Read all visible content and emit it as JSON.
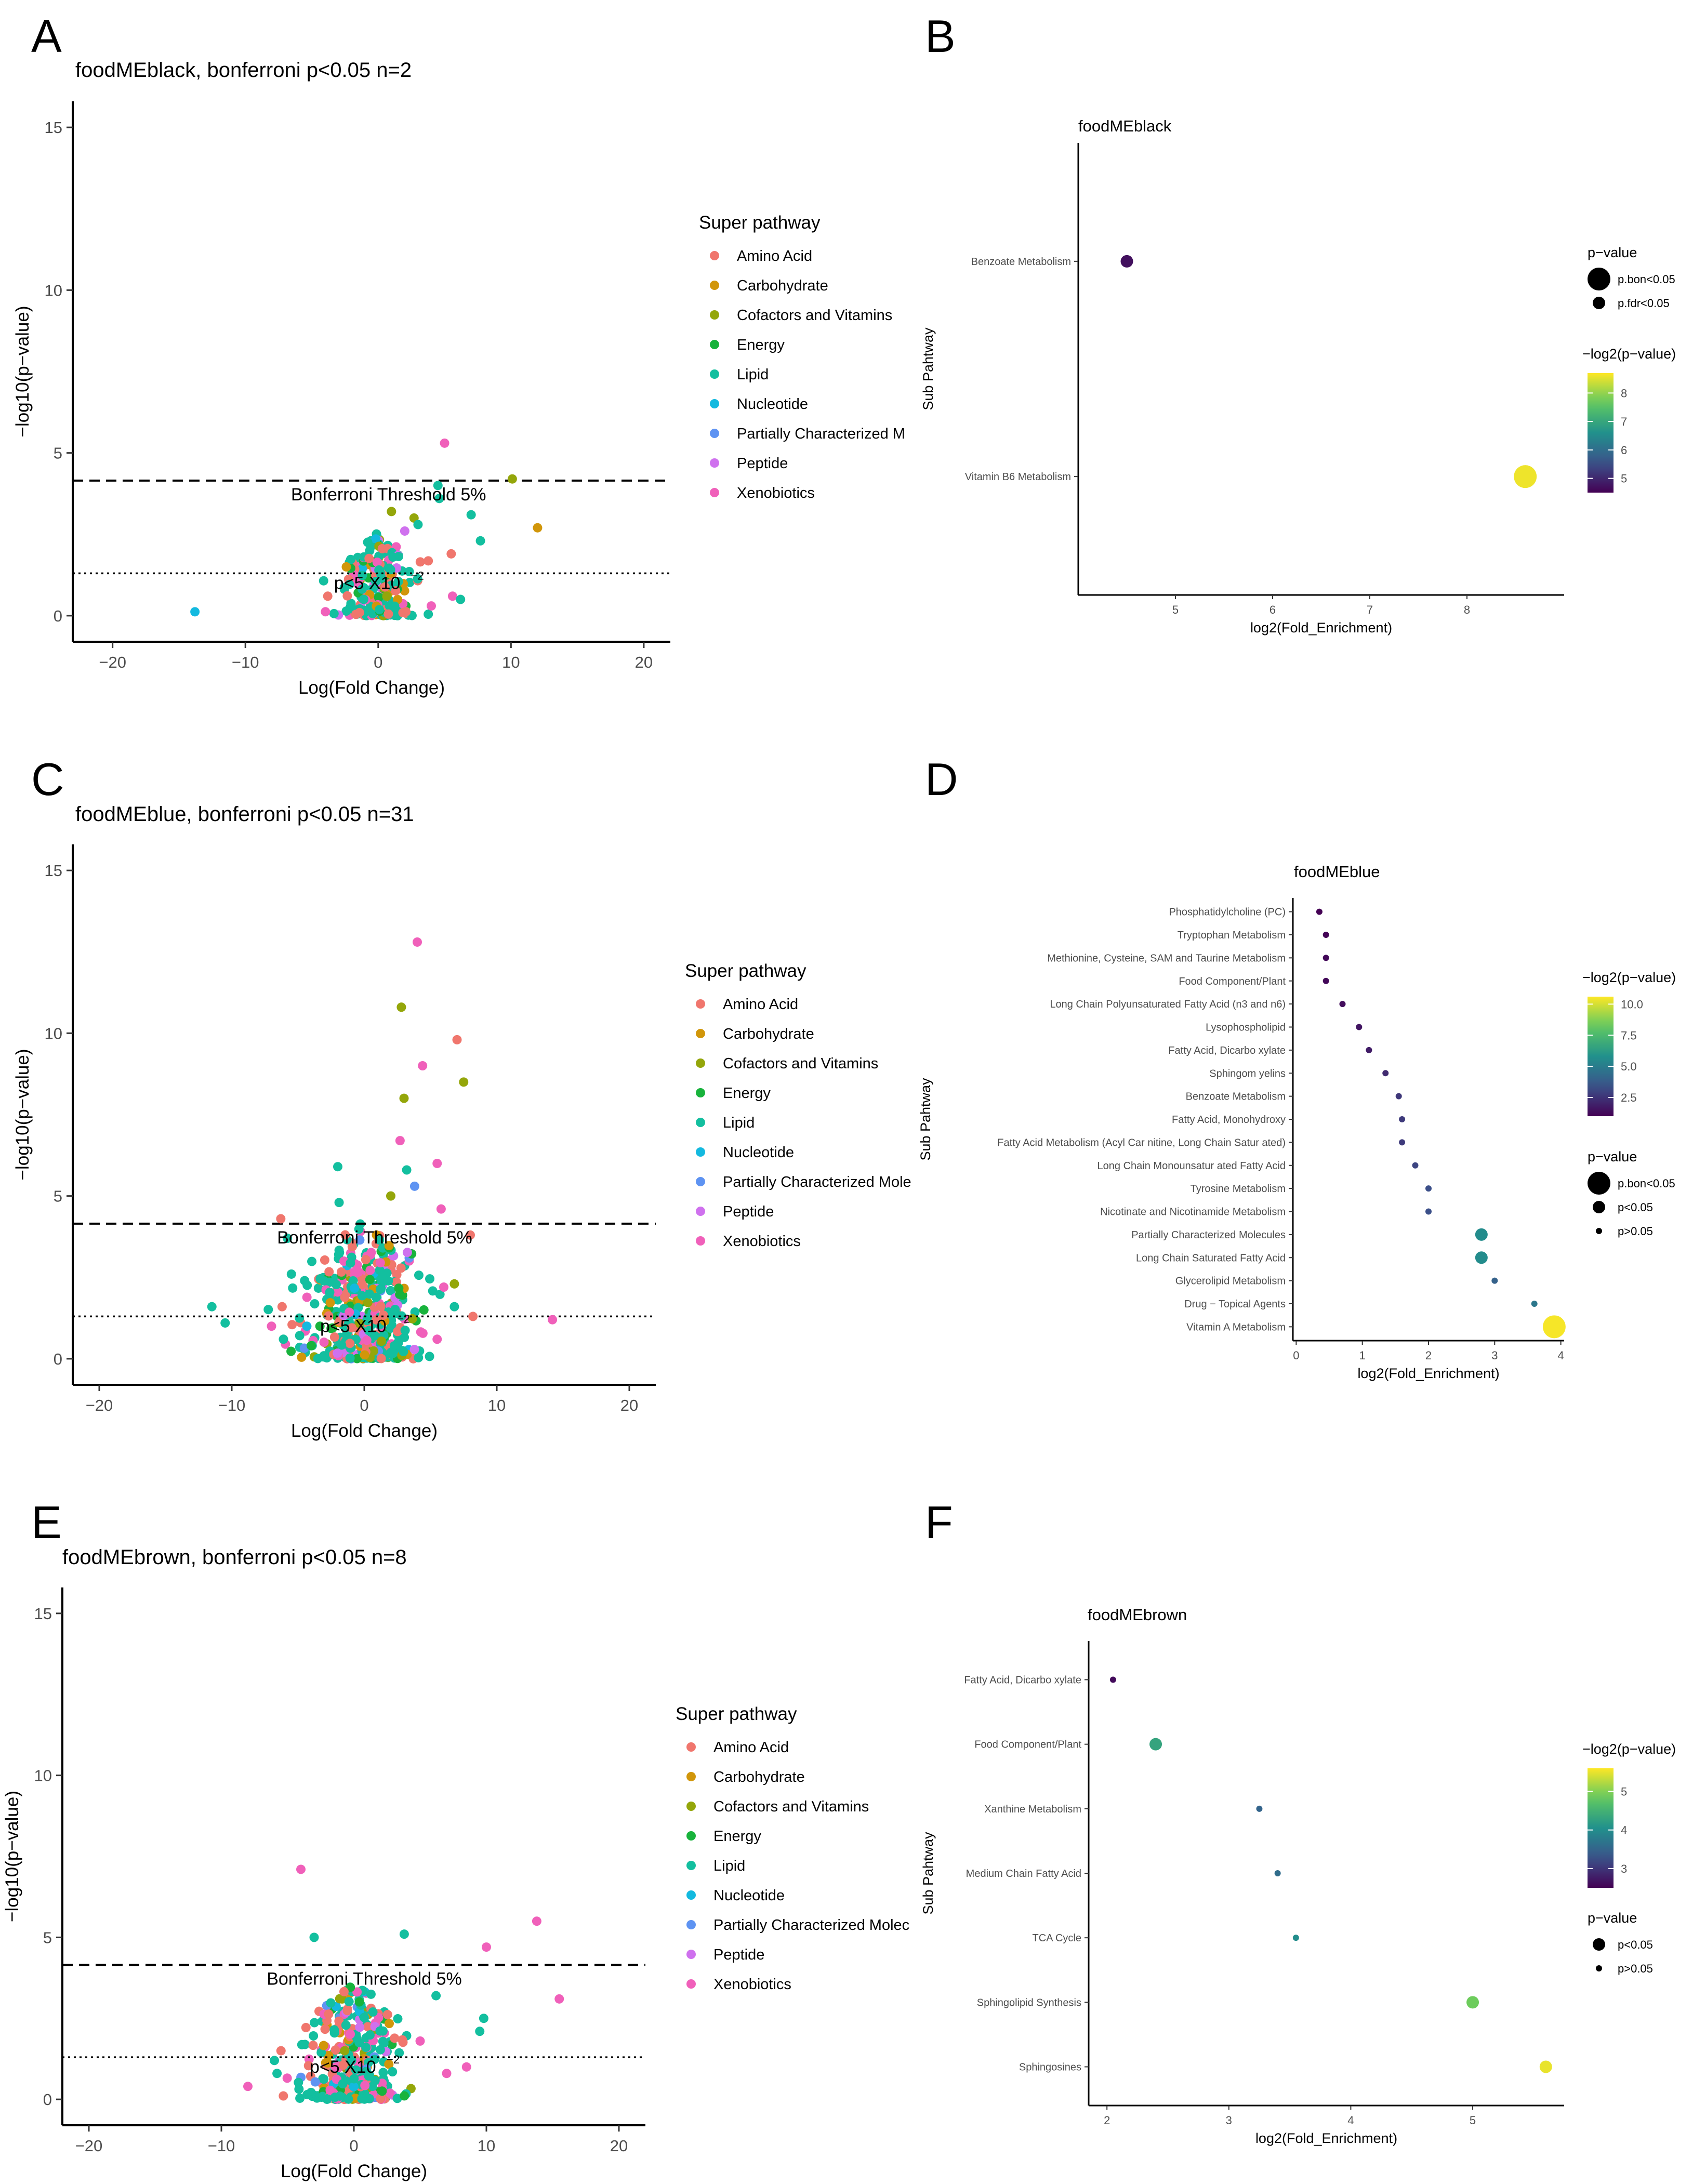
{
  "figure": {
    "panel_letters": [
      "A",
      "B",
      "C",
      "D",
      "E",
      "F"
    ]
  },
  "palette": {
    "Amino Acid": "#f0766d",
    "Carbohydrate": "#d1960a",
    "Cofactors and Vitamins": "#94a60a",
    "Energy": "#18b33c",
    "Lipid": "#13bf9f",
    "Nucleotide": "#13b9df",
    "Partially Characterized Molecules": "#5e93f2",
    "Peptide": "#cf71ee",
    "Xenobiotics": "#f060ba"
  },
  "chart_data": [
    {
      "id": "A",
      "type": "scatter",
      "title": "foodMEblack, bonferroni p<0.05 n=2",
      "xlabel": "Log(Fold Change)",
      "ylabel": "−log10(p−value)",
      "xlim": [
        -23,
        22
      ],
      "ylim": [
        -0.8,
        15.8
      ],
      "xticks": [
        -20,
        -10,
        0,
        10,
        20
      ],
      "xtick_labels": [
        "−20",
        "−10",
        "0",
        "10",
        "20"
      ],
      "yticks": [
        0,
        5,
        10,
        15
      ],
      "ytick_labels": [
        "0",
        "5",
        "10",
        "15"
      ],
      "hline_bonferroni": 4.15,
      "hline_p": 1.3,
      "bonf_label": "Bonferroni Threshold 5%",
      "p_label": "p<5 X10",
      "legend_title": "Super pathway",
      "legend_items": [
        "Amino Acid",
        "Carbohydrate",
        "Cofactors and Vitamins",
        "Energy",
        "Lipid",
        "Nucleotide",
        "Partially Characterized M",
        "Peptide",
        "Xenobiotics"
      ],
      "cloud": {
        "seed": 11,
        "n": 230,
        "x_sd": 1.3,
        "y_max": 2.6,
        "dist": [
          0.18,
          0.06,
          0.05,
          0.06,
          0.42,
          0.03,
          0.02,
          0.05,
          0.13
        ]
      },
      "points": [
        {
          "x": -13.8,
          "y": 0.12,
          "c": "Nucleotide"
        },
        {
          "x": 5.0,
          "y": 5.3,
          "c": "Xenobiotics"
        },
        {
          "x": 10.1,
          "y": 4.2,
          "c": "Cofactors and Vitamins"
        },
        {
          "x": 12.0,
          "y": 2.7,
          "c": "Carbohydrate"
        },
        {
          "x": 4.5,
          "y": 4.0,
          "c": "Lipid"
        },
        {
          "x": 7.0,
          "y": 3.1,
          "c": "Lipid"
        },
        {
          "x": 4.6,
          "y": 3.6,
          "c": "Lipid"
        },
        {
          "x": 7.7,
          "y": 2.3,
          "c": "Lipid"
        },
        {
          "x": 5.5,
          "y": 1.9,
          "c": "Amino Acid"
        },
        {
          "x": 2.7,
          "y": 3.0,
          "c": "Cofactors and Vitamins"
        },
        {
          "x": 1.0,
          "y": 3.2,
          "c": "Cofactors and Vitamins"
        },
        {
          "x": 3.0,
          "y": 2.8,
          "c": "Lipid"
        },
        {
          "x": -2.4,
          "y": 1.5,
          "c": "Carbohydrate"
        },
        {
          "x": 5.6,
          "y": 0.6,
          "c": "Xenobiotics"
        },
        {
          "x": 4.0,
          "y": 0.3,
          "c": "Xenobiotics"
        },
        {
          "x": 6.2,
          "y": 0.5,
          "c": "Lipid"
        },
        {
          "x": -3.8,
          "y": 0.6,
          "c": "Amino Acid"
        },
        {
          "x": 2.0,
          "y": 2.6,
          "c": "Peptide"
        }
      ]
    },
    {
      "id": "C",
      "type": "scatter",
      "title": "foodMEblue, bonferroni p<0.05 n=31",
      "xlabel": "Log(Fold Change)",
      "ylabel": "−log10(p−value)",
      "xlim": [
        -22,
        22
      ],
      "ylim": [
        -0.8,
        15.8
      ],
      "xticks": [
        -20,
        -10,
        0,
        10,
        20
      ],
      "xtick_labels": [
        "−20",
        "−10",
        "0",
        "10",
        "20"
      ],
      "yticks": [
        0,
        5,
        10,
        15
      ],
      "ytick_labels": [
        "0",
        "5",
        "10",
        "15"
      ],
      "hline_bonferroni": 4.15,
      "hline_p": 1.3,
      "bonf_label": "Bonferroni Threshold 5%",
      "p_label": "p<5 X10",
      "legend_title": "Super pathway",
      "legend_items": [
        "Amino Acid",
        "Carbohydrate",
        "Cofactors and Vitamins",
        "Energy",
        "Lipid",
        "Nucleotide",
        "Partially Characterized Mole",
        "Peptide",
        "Xenobiotics"
      ],
      "cloud": {
        "seed": 23,
        "n": 420,
        "x_sd": 1.9,
        "y_max": 4.3,
        "dist": [
          0.17,
          0.06,
          0.05,
          0.05,
          0.48,
          0.03,
          0.02,
          0.04,
          0.1
        ]
      },
      "points": [
        {
          "x": 4.0,
          "y": 12.8,
          "c": "Xenobiotics"
        },
        {
          "x": 2.8,
          "y": 10.8,
          "c": "Cofactors and Vitamins"
        },
        {
          "x": 7.0,
          "y": 9.8,
          "c": "Amino Acid"
        },
        {
          "x": 7.5,
          "y": 8.5,
          "c": "Cofactors and Vitamins"
        },
        {
          "x": 4.4,
          "y": 9.0,
          "c": "Xenobiotics"
        },
        {
          "x": 3.0,
          "y": 8.0,
          "c": "Cofactors and Vitamins"
        },
        {
          "x": 2.7,
          "y": 6.7,
          "c": "Xenobiotics"
        },
        {
          "x": 5.5,
          "y": 6.0,
          "c": "Xenobiotics"
        },
        {
          "x": 3.2,
          "y": 5.8,
          "c": "Lipid"
        },
        {
          "x": 3.8,
          "y": 5.3,
          "c": "Partially Characterized Molecules"
        },
        {
          "x": 2.0,
          "y": 5.0,
          "c": "Cofactors and Vitamins"
        },
        {
          "x": 5.8,
          "y": 4.6,
          "c": "Xenobiotics"
        },
        {
          "x": -2.0,
          "y": 5.9,
          "c": "Lipid"
        },
        {
          "x": -1.9,
          "y": 4.8,
          "c": "Lipid"
        },
        {
          "x": -6.3,
          "y": 4.3,
          "c": "Amino Acid"
        },
        {
          "x": 8.0,
          "y": 3.8,
          "c": "Amino Acid"
        },
        {
          "x": 6.8,
          "y": 2.3,
          "c": "Cofactors and Vitamins"
        },
        {
          "x": 6.0,
          "y": 2.2,
          "c": "Xenobiotics"
        },
        {
          "x": -11.5,
          "y": 1.6,
          "c": "Lipid"
        },
        {
          "x": -10.5,
          "y": 1.1,
          "c": "Lipid"
        },
        {
          "x": -6.2,
          "y": 1.6,
          "c": "Amino Acid"
        },
        {
          "x": -6.1,
          "y": 0.6,
          "c": "Lipid"
        },
        {
          "x": -7.0,
          "y": 1.0,
          "c": "Xenobiotics"
        },
        {
          "x": -5.5,
          "y": 2.6,
          "c": "Lipid"
        },
        {
          "x": -4.5,
          "y": 2.4,
          "c": "Lipid"
        },
        {
          "x": -5.8,
          "y": 3.7,
          "c": "Lipid"
        },
        {
          "x": 8.2,
          "y": 1.3,
          "c": "Amino Acid"
        },
        {
          "x": 14.2,
          "y": 1.2,
          "c": "Xenobiotics"
        },
        {
          "x": 5.5,
          "y": 0.6,
          "c": "Xenobiotics"
        },
        {
          "x": 6.8,
          "y": 1.6,
          "c": "Lipid"
        },
        {
          "x": -4.0,
          "y": 0.4,
          "c": "Energy"
        },
        {
          "x": 4.5,
          "y": 1.5,
          "c": "Energy"
        }
      ]
    },
    {
      "id": "E",
      "type": "scatter",
      "title": "foodMEbrown, bonferroni p<0.05 n=8",
      "xlabel": "Log(Fold Change)",
      "ylabel": "−log10(p−value)",
      "xlim": [
        -22,
        22
      ],
      "ylim": [
        -0.8,
        15.8
      ],
      "xticks": [
        -20,
        -10,
        0,
        10,
        20
      ],
      "xtick_labels": [
        "−20",
        "−10",
        "0",
        "10",
        "20"
      ],
      "yticks": [
        0,
        5,
        10,
        15
      ],
      "ytick_labels": [
        "0",
        "5",
        "10",
        "15"
      ],
      "hline_bonferroni": 4.15,
      "hline_p": 1.3,
      "bonf_label": "Bonferroni Threshold 5%",
      "p_label": "p<5 X10",
      "legend_title": "Super pathway",
      "legend_items": [
        "Amino Acid",
        "Carbohydrate",
        "Cofactors and Vitamins",
        "Energy",
        "Lipid",
        "Nucleotide",
        "Partially Characterized Molec",
        "Peptide",
        "Xenobiotics"
      ],
      "cloud": {
        "seed": 37,
        "n": 360,
        "x_sd": 1.8,
        "y_max": 3.6,
        "dist": [
          0.16,
          0.07,
          0.05,
          0.05,
          0.42,
          0.03,
          0.02,
          0.04,
          0.16
        ]
      },
      "points": [
        {
          "x": -4.0,
          "y": 7.1,
          "c": "Xenobiotics"
        },
        {
          "x": 13.8,
          "y": 5.5,
          "c": "Xenobiotics"
        },
        {
          "x": 3.8,
          "y": 5.1,
          "c": "Lipid"
        },
        {
          "x": -3.0,
          "y": 5.0,
          "c": "Lipid"
        },
        {
          "x": 10.0,
          "y": 4.7,
          "c": "Xenobiotics"
        },
        {
          "x": 15.5,
          "y": 3.1,
          "c": "Xenobiotics"
        },
        {
          "x": 9.8,
          "y": 2.5,
          "c": "Lipid"
        },
        {
          "x": 9.5,
          "y": 2.1,
          "c": "Lipid"
        },
        {
          "x": 8.5,
          "y": 1.0,
          "c": "Xenobiotics"
        },
        {
          "x": 7.0,
          "y": 0.8,
          "c": "Xenobiotics"
        },
        {
          "x": -8.0,
          "y": 0.4,
          "c": "Xenobiotics"
        },
        {
          "x": -6.0,
          "y": 1.2,
          "c": "Lipid"
        },
        {
          "x": -5.5,
          "y": 1.5,
          "c": "Amino Acid"
        },
        {
          "x": -5.8,
          "y": 0.8,
          "c": "Lipid"
        },
        {
          "x": 5.0,
          "y": 1.8,
          "c": "Xenobiotics"
        },
        {
          "x": 6.2,
          "y": 3.2,
          "c": "Lipid"
        }
      ]
    },
    {
      "id": "B",
      "type": "scatter",
      "subtype": "enrichment-dotplot",
      "title": "foodMEblack",
      "xlabel": "log2(Fold_Enrichment)",
      "ylabel": "Sub Pahtway",
      "xlim": [
        4.0,
        9.0
      ],
      "xticks": [
        5,
        6,
        7,
        8
      ],
      "xtick_labels": [
        "5",
        "6",
        "7",
        "8"
      ],
      "categories": [
        "Benzoate Metabolism",
        "Vitamin B6 Metabolism"
      ],
      "points": [
        {
          "category": "Benzoate Metabolism",
          "x": 4.5,
          "neglog2p": 4.7,
          "sig": "p.fdr<0.05"
        },
        {
          "category": "Vitamin B6 Metabolism",
          "x": 8.6,
          "neglog2p": 8.6,
          "sig": "p.bon<0.05"
        }
      ],
      "size_legend_title": "p−value",
      "size_legend": [
        {
          "label": "p.bon<0.05",
          "size": "large"
        },
        {
          "label": "p.fdr<0.05",
          "size": "medium"
        }
      ],
      "color_legend_title": "−log2(p−value)",
      "color_range": [
        4.5,
        8.7
      ],
      "color_ticks": [
        5,
        6,
        7,
        8
      ],
      "color_tick_labels": [
        "5",
        "6",
        "7",
        "8"
      ]
    },
    {
      "id": "D",
      "type": "scatter",
      "subtype": "enrichment-dotplot",
      "title": "foodMEblue",
      "xlabel": "log2(Fold_Enrichment)",
      "ylabel": "Sub Pahtway",
      "xlim": [
        -0.05,
        4.05
      ],
      "xticks": [
        0,
        1,
        2,
        3,
        4
      ],
      "xtick_labels": [
        "0",
        "1",
        "2",
        "3",
        "4"
      ],
      "categories": [
        "Phosphatidylcholine (PC)",
        "Tryptophan Metabolism",
        "Methionine, Cysteine, SAM and Taurine Metabolism",
        "Food Component/Plant",
        "Long Chain Polyunsaturated Fatty Acid (n3 and n6)",
        "Lysophospholipid",
        "Fatty Acid, Dicarbo xylate",
        "Sphingom yelins",
        "Benzoate Metabolism",
        "Fatty Acid, Monohydroxy",
        "Fatty Acid Metabolism (Acyl Car nitine, Long Chain Satur ated)",
        "Long Chain Monounsatur ated Fatty Acid",
        "Tyrosine Metabolism",
        "Nicotinate and Nicotinamide Metabolism",
        "Partially Characterized Molecules",
        "Long Chain Saturated Fatty Acid",
        "Glycerolipid Metabolism",
        "Drug − Topical Agents",
        "Vitamin A Metabolism"
      ],
      "points": [
        {
          "category": "Phosphatidylcholine (PC)",
          "x": 0.35,
          "neglog2p": 1.0,
          "sig": "p>0.05"
        },
        {
          "category": "Tryptophan Metabolism",
          "x": 0.45,
          "neglog2p": 1.1,
          "sig": "p>0.05"
        },
        {
          "category": "Methionine, Cysteine, SAM and Taurine Metabolism",
          "x": 0.45,
          "neglog2p": 1.2,
          "sig": "p>0.05"
        },
        {
          "category": "Food Component/Plant",
          "x": 0.45,
          "neglog2p": 1.2,
          "sig": "p>0.05"
        },
        {
          "category": "Long Chain Polyunsaturated Fatty Acid (n3 and n6)",
          "x": 0.7,
          "neglog2p": 1.4,
          "sig": "p>0.05"
        },
        {
          "category": "Lysophospholipid",
          "x": 0.95,
          "neglog2p": 1.6,
          "sig": "p>0.05"
        },
        {
          "category": "Fatty Acid, Dicarbo xylate",
          "x": 1.1,
          "neglog2p": 1.8,
          "sig": "p>0.05"
        },
        {
          "category": "Sphingom yelins",
          "x": 1.35,
          "neglog2p": 2.2,
          "sig": "p>0.05"
        },
        {
          "category": "Benzoate Metabolism",
          "x": 1.55,
          "neglog2p": 2.6,
          "sig": "p>0.05"
        },
        {
          "category": "Fatty Acid, Monohydroxy",
          "x": 1.6,
          "neglog2p": 2.7,
          "sig": "p>0.05"
        },
        {
          "category": "Fatty Acid Metabolism (Acyl Car nitine, Long Chain Satur ated)",
          "x": 1.6,
          "neglog2p": 2.7,
          "sig": "p>0.05"
        },
        {
          "category": "Long Chain Monounsatur ated Fatty Acid",
          "x": 1.8,
          "neglog2p": 3.0,
          "sig": "p>0.05"
        },
        {
          "category": "Tyrosine Metabolism",
          "x": 2.0,
          "neglog2p": 3.3,
          "sig": "p>0.05"
        },
        {
          "category": "Nicotinate and Nicotinamide Metabolism",
          "x": 2.0,
          "neglog2p": 3.3,
          "sig": "p>0.05"
        },
        {
          "category": "Partially Characterized Molecules",
          "x": 2.8,
          "neglog2p": 5.6,
          "sig": "p<0.05"
        },
        {
          "category": "Long Chain Saturated Fatty Acid",
          "x": 2.8,
          "neglog2p": 5.6,
          "sig": "p<0.05"
        },
        {
          "category": "Glycerolipid Metabolism",
          "x": 3.0,
          "neglog2p": 4.0,
          "sig": "p>0.05"
        },
        {
          "category": "Drug − Topical Agents",
          "x": 3.6,
          "neglog2p": 4.8,
          "sig": "p>0.05"
        },
        {
          "category": "Vitamin A Metabolism",
          "x": 3.9,
          "neglog2p": 10.5,
          "sig": "p.bon<0.05"
        }
      ],
      "size_legend_title": "p−value",
      "size_legend": [
        {
          "label": "p.bon<0.05",
          "size": "large"
        },
        {
          "label": "p<0.05",
          "size": "medium"
        },
        {
          "label": "p>0.05",
          "size": "small"
        }
      ],
      "color_legend_title": "−log2(p−value)",
      "color_range": [
        1.0,
        10.6
      ],
      "color_ticks": [
        2.5,
        5.0,
        7.5,
        10.0
      ],
      "color_tick_labels": [
        "2.5",
        "5.0",
        "7.5",
        "10.0"
      ]
    },
    {
      "id": "F",
      "type": "scatter",
      "subtype": "enrichment-dotplot",
      "title": "foodMEbrown",
      "xlabel": "log2(Fold_Enrichment)",
      "ylabel": "Sub Pahtway",
      "xlim": [
        1.85,
        5.75
      ],
      "xticks": [
        2,
        3,
        4,
        5
      ],
      "xtick_labels": [
        "2",
        "3",
        "4",
        "5"
      ],
      "categories": [
        "Fatty Acid, Dicarbo xylate",
        "Food Component/Plant",
        "Xanthine Metabolism",
        "Medium Chain Fatty Acid",
        "TCA Cycle",
        "Sphingolipid Synthesis",
        "Sphingosines"
      ],
      "points": [
        {
          "category": "Fatty Acid, Dicarbo xylate",
          "x": 2.05,
          "neglog2p": 2.6,
          "sig": "p>0.05"
        },
        {
          "category": "Food Component/Plant",
          "x": 2.4,
          "neglog2p": 4.3,
          "sig": "p<0.05"
        },
        {
          "category": "Xanthine Metabolism",
          "x": 3.25,
          "neglog2p": 3.5,
          "sig": "p>0.05"
        },
        {
          "category": "Medium Chain Fatty Acid",
          "x": 3.4,
          "neglog2p": 3.6,
          "sig": "p>0.05"
        },
        {
          "category": "TCA Cycle",
          "x": 3.55,
          "neglog2p": 4.0,
          "sig": "p>0.05"
        },
        {
          "category": "Sphingolipid Synthesis",
          "x": 5.0,
          "neglog2p": 4.9,
          "sig": "p<0.05"
        },
        {
          "category": "Sphingosines",
          "x": 5.6,
          "neglog2p": 5.5,
          "sig": "p<0.05"
        }
      ],
      "size_legend_title": "p−value",
      "size_legend": [
        {
          "label": "p<0.05",
          "size": "medium"
        },
        {
          "label": "p>0.05",
          "size": "small"
        }
      ],
      "color_legend_title": "−log2(p−value)",
      "color_range": [
        2.5,
        5.6
      ],
      "color_ticks": [
        3,
        4,
        5
      ],
      "color_tick_labels": [
        "3",
        "4",
        "5"
      ]
    }
  ]
}
